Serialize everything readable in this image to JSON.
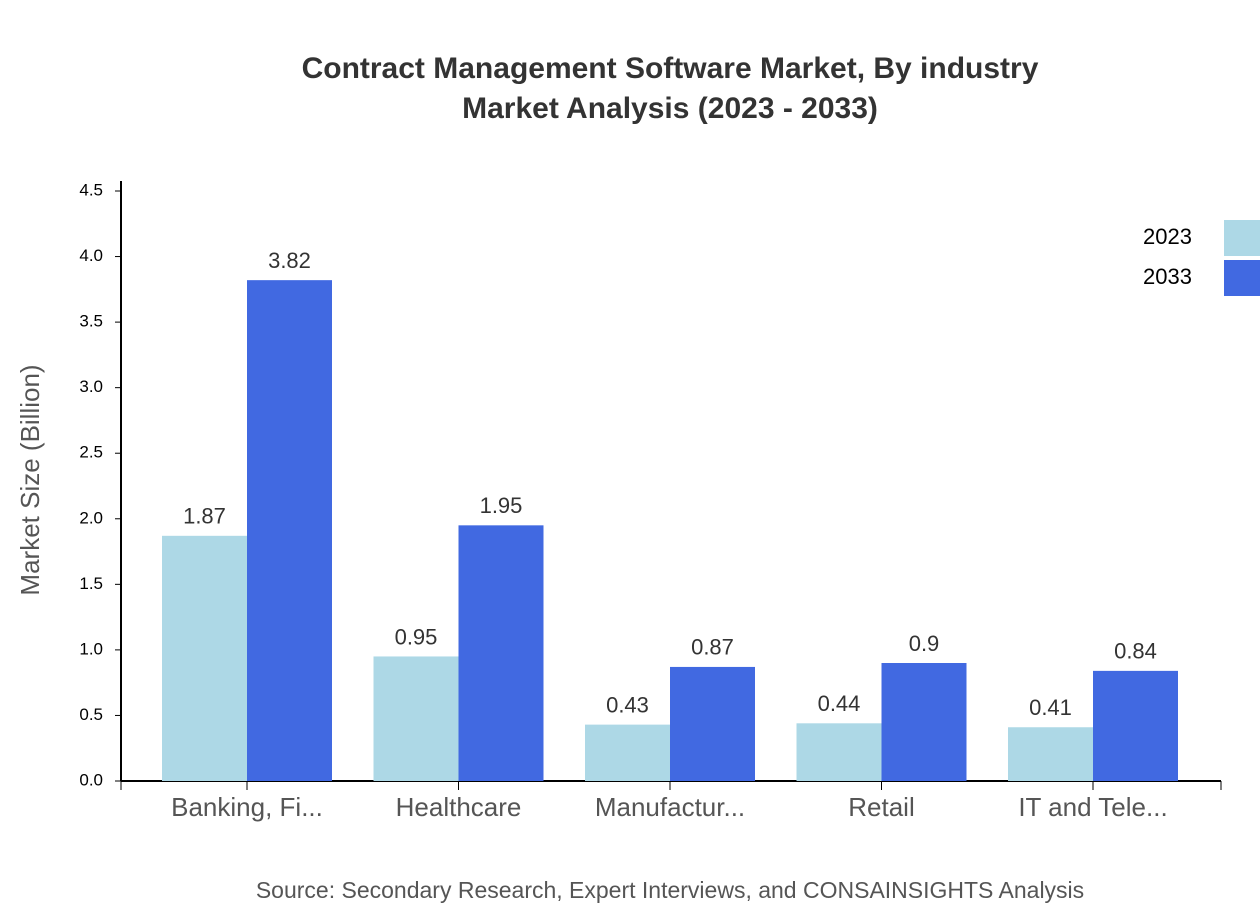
{
  "chart_data": {
    "type": "bar",
    "title": "Contract Management Software Market, By industry",
    "subtitle": "Market Analysis (2023 - 2033)",
    "y_label": "Market Size (Billion)",
    "source": "Source: Secondary Research, Expert Interviews, and CONSAINSIGHTS Analysis",
    "categories": [
      "Banking, Fi...",
      "Healthcare",
      "Manufactur...",
      "Retail",
      "IT and Tele..."
    ],
    "series": [
      {
        "name": "2023",
        "color": "#add8e6",
        "values": [
          1.87,
          0.95,
          0.43,
          0.44,
          0.41
        ]
      },
      {
        "name": "2033",
        "color": "#4169e1",
        "values": [
          3.82,
          1.95,
          0.87,
          0.9,
          0.84
        ]
      }
    ],
    "ylim": [
      0,
      4.5
    ],
    "yticks": [
      {
        "value": 0,
        "label": "0.0"
      },
      0.5,
      {
        "value": 1,
        "label": "1.0"
      },
      1.5,
      {
        "value": 2,
        "label": "2.0"
      },
      2.5,
      {
        "value": 3,
        "label": "3.0"
      },
      3.5,
      {
        "value": 4,
        "label": "4.0"
      },
      4.5
    ],
    "legend": "top-right"
  }
}
